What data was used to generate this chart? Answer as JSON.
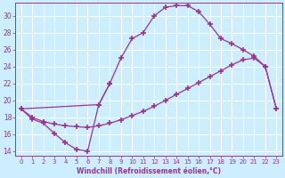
{
  "background_color": "#cceeff",
  "grid_color": "#aaddcc",
  "line_color": "#993399",
  "xlabel": "Windchill (Refroidissement éolien,°C)",
  "xlim": [
    -0.5,
    23.5
  ],
  "ylim": [
    13.5,
    31.5
  ],
  "yticks": [
    14,
    16,
    18,
    20,
    22,
    24,
    26,
    28,
    30
  ],
  "xticks": [
    0,
    1,
    2,
    3,
    4,
    5,
    6,
    7,
    8,
    9,
    10,
    11,
    12,
    13,
    14,
    15,
    16,
    17,
    18,
    19,
    20,
    21,
    22,
    23
  ],
  "curve1_x": [
    0,
    1,
    2,
    3,
    4,
    5,
    6,
    7,
    8
  ],
  "curve1_y": [
    19.0,
    17.8,
    17.3,
    16.1,
    15.0,
    14.2,
    14.0,
    19.5,
    22.0
  ],
  "curve2_x": [
    0,
    1,
    2,
    3,
    4,
    5,
    6,
    7,
    8,
    9,
    10,
    11,
    12,
    13,
    14,
    15,
    16,
    17,
    18,
    19,
    20,
    21,
    22,
    23
  ],
  "curve2_y": [
    19.0,
    18.0,
    17.5,
    17.2,
    17.0,
    16.9,
    16.8,
    17.0,
    17.3,
    17.7,
    18.2,
    18.7,
    19.3,
    20.0,
    20.7,
    21.4,
    22.1,
    22.8,
    23.5,
    24.2,
    24.8,
    25.0,
    24.0,
    19.0
  ],
  "curve3_x": [
    0,
    7,
    8,
    9,
    10,
    11,
    12,
    13,
    14,
    15,
    16,
    17,
    18,
    19,
    20,
    21,
    22,
    23
  ],
  "curve3_y": [
    19.0,
    19.5,
    22.0,
    25.0,
    27.3,
    28.0,
    30.0,
    31.0,
    31.2,
    31.2,
    30.5,
    29.0,
    27.3,
    26.7,
    26.0,
    25.2,
    24.0,
    19.0
  ]
}
